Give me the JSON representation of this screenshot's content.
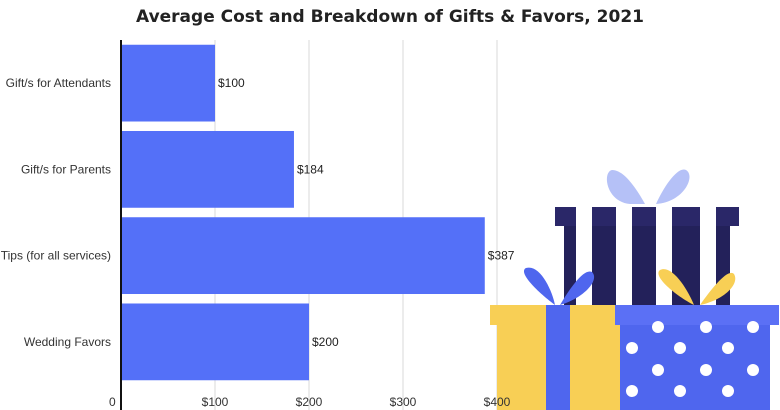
{
  "chart_data": {
    "type": "bar",
    "orientation": "horizontal",
    "title": "Average Cost and Breakdown of Gifts & Favors, 2021",
    "categories": [
      "Gift/s for Attendants",
      "Gift/s for Parents",
      "Tips (for all services)",
      "Wedding Favors"
    ],
    "values": [
      100,
      184,
      387,
      200
    ],
    "value_labels": [
      "$100",
      "$184",
      "$387",
      "$200"
    ],
    "x_ticks": [
      0,
      100,
      200,
      300,
      400
    ],
    "x_tick_labels": [
      "0",
      "$100",
      "$200",
      "$300",
      "$400"
    ],
    "xlim": [
      0,
      400
    ],
    "xlabel": "",
    "ylabel": "",
    "grid": true,
    "legend": "none"
  },
  "colors": {
    "bar": "#5470f8",
    "grid": "#d9d9d9",
    "axis": "#111111",
    "gift_yellow": "#f8cf55",
    "gift_blue": "#4f66ee",
    "gift_navy": "#23215a",
    "bow_light": "#b5c1f7",
    "dots": "#ffffff"
  },
  "decoration": {
    "icon": "gift-boxes-illustration"
  }
}
